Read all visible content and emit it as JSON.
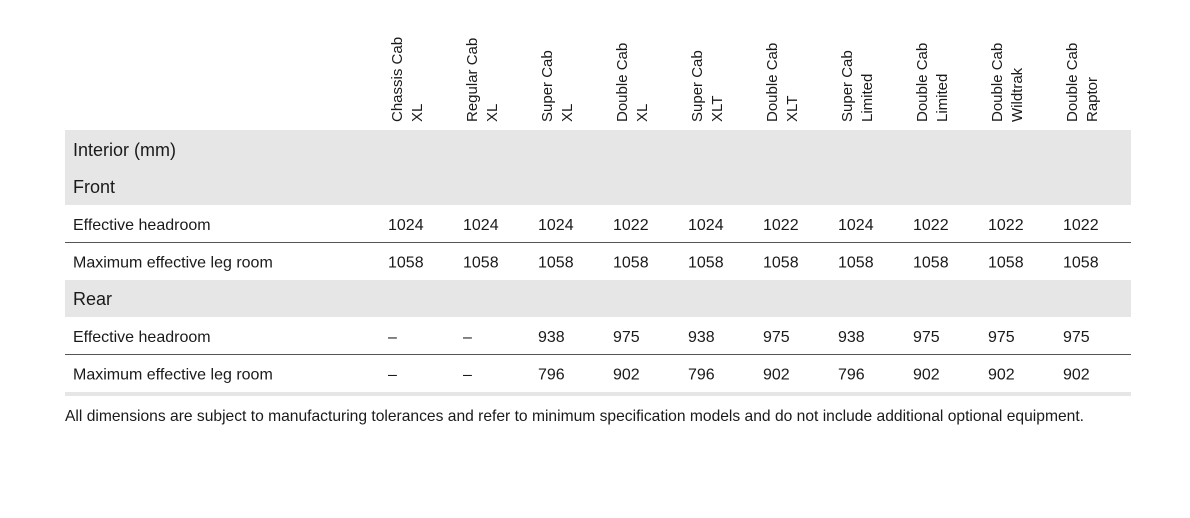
{
  "table": {
    "columns": [
      [
        "Chassis Cab",
        "XL"
      ],
      [
        "Regular Cab",
        "XL"
      ],
      [
        "Super Cab",
        "XL"
      ],
      [
        "Double Cab",
        "XL"
      ],
      [
        "Super Cab",
        "XLT"
      ],
      [
        "Double Cab",
        "XLT"
      ],
      [
        "Super Cab",
        "Limited"
      ],
      [
        "Double Cab",
        "Limited"
      ],
      [
        "Double Cab",
        "Wildtrak"
      ],
      [
        "Double Cab",
        "Raptor"
      ]
    ],
    "title": "Interior (mm)",
    "groups": [
      {
        "name": "Front",
        "rows": [
          {
            "label": "Effective headroom",
            "values": [
              "1024",
              "1024",
              "1024",
              "1022",
              "1024",
              "1022",
              "1024",
              "1022",
              "1022",
              "1022"
            ]
          },
          {
            "label": "Maximum effective leg room",
            "values": [
              "1058",
              "1058",
              "1058",
              "1058",
              "1058",
              "1058",
              "1058",
              "1058",
              "1058",
              "1058"
            ]
          }
        ]
      },
      {
        "name": "Rear",
        "rows": [
          {
            "label": "Effective headroom",
            "values": [
              "–",
              "–",
              "938",
              "975",
              "938",
              "975",
              "938",
              "975",
              "975",
              "975"
            ]
          },
          {
            "label": "Maximum effective leg room",
            "values": [
              "–",
              "–",
              "796",
              "902",
              "796",
              "902",
              "796",
              "902",
              "902",
              "902"
            ]
          }
        ]
      }
    ],
    "footnote": "All dimensions are subject to manufacturing tolerances and refer to minimum specification models and do not include additional optional equipment."
  }
}
